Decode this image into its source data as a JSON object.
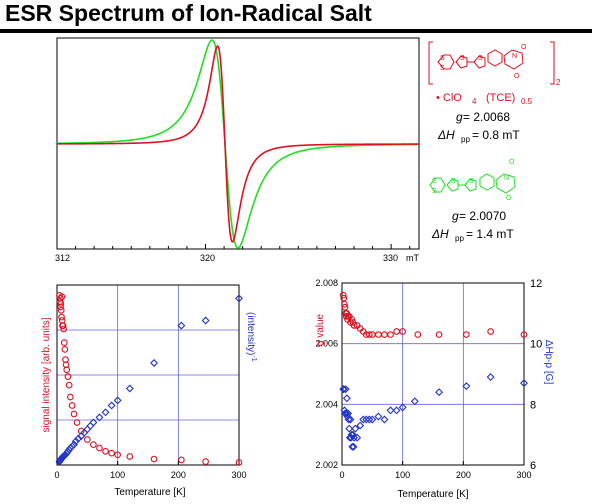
{
  "page": {
    "title": "ESR Spectrum of Ion-Radical Salt"
  },
  "colors": {
    "red": "#dd1122",
    "green": "#22dd22",
    "blue": "#2233cc",
    "grid": "#6666dd"
  },
  "legend": {
    "salt": {
      "counterion": "• ClO",
      "sub4": "4",
      "tce": "(TCE)",
      "sub05": "0.5",
      "sub2": "2",
      "g_label": "g",
      "g_value": " = 2.0068",
      "dh_label": "ΔH",
      "dh_sub": "pp",
      "dh_value": " = 0.8 mT"
    },
    "neutral": {
      "g_label": "g",
      "g_value": " = 2.0070",
      "dh_label": "ΔH",
      "dh_sub": "pp",
      "dh_value": " = 1.4 mT"
    }
  },
  "chart_data": [
    {
      "type": "line",
      "title": "ESR Spectrum of Ion-Radical Salt",
      "xlabel": "mT",
      "xlim": [
        312,
        331.5
      ],
      "xticks": [
        "312",
        "320",
        "330"
      ],
      "series": [
        {
          "color": "red",
          "center": 321.05,
          "dHpp": 0.8
        },
        {
          "color": "green",
          "center": 321.05,
          "dHpp": 1.4
        }
      ]
    },
    {
      "type": "scatter",
      "xlabel": "Temperature [K]",
      "ylabel": "signal intensity [arb. units]",
      "ylabel_right": "(intensity)",
      "ylabel_right_sup": "-1",
      "xlim": [
        0,
        300
      ],
      "xticks": [
        "0",
        "100",
        "200",
        "300"
      ],
      "series": [
        {
          "color": "red",
          "marker": "circle",
          "x": [
            4,
            5,
            5.5,
            6,
            6.5,
            7,
            7.5,
            8,
            8.5,
            9,
            10,
            11,
            12,
            13,
            14,
            15,
            16,
            18,
            20,
            22,
            25,
            28,
            33,
            40,
            50,
            60,
            70,
            80,
            90,
            100,
            120,
            160,
            205,
            245,
            300
          ],
          "y": [
            0.998,
            0.96,
            0.98,
            0.93,
            0.95,
            0.91,
            0.87,
            0.99,
            0.85,
            0.82,
            0.82,
            0.8,
            0.72,
            0.68,
            0.62,
            0.59,
            0.56,
            0.52,
            0.47,
            0.4,
            0.35,
            0.3,
            0.25,
            0.2,
            0.15,
            0.12,
            0.1,
            0.08,
            0.07,
            0.06,
            0.05,
            0.035,
            0.03,
            0.02,
            0.015
          ]
        },
        {
          "color": "blue",
          "marker": "diamond",
          "x": [
            4,
            5,
            6,
            7,
            8,
            9,
            10,
            12,
            14,
            16,
            18,
            20,
            22,
            25,
            28,
            31,
            35,
            40,
            45,
            50,
            55,
            60,
            70,
            80,
            90,
            100,
            120,
            160,
            205,
            245,
            300
          ],
          "y": [
            0.02,
            0.025,
            0.03,
            0.035,
            0.04,
            0.045,
            0.05,
            0.055,
            0.06,
            0.07,
            0.08,
            0.09,
            0.1,
            0.11,
            0.12,
            0.14,
            0.155,
            0.17,
            0.19,
            0.21,
            0.23,
            0.25,
            0.28,
            0.31,
            0.35,
            0.38,
            0.45,
            0.6,
            0.82,
            0.85,
            0.98
          ]
        }
      ]
    },
    {
      "type": "scatter",
      "xlabel": "Temperature [K]",
      "ylabel": "g value",
      "ylabel_right": "ΔHp-p [G]",
      "xlim": [
        0,
        300
      ],
      "xticks": [
        "0",
        "100",
        "200",
        "300"
      ],
      "ylim": [
        2.002,
        2.008
      ],
      "yticks": [
        "2.002",
        "2.004",
        "2.006",
        "2.008"
      ],
      "ylim_right": [
        6,
        12
      ],
      "yticks_right": [
        "6",
        "8",
        "10",
        "12"
      ],
      "series": [
        {
          "color": "red",
          "marker": "circle",
          "axis": "left",
          "x": [
            2,
            3,
            4,
            5,
            6,
            7,
            8,
            9,
            10,
            12,
            14,
            16,
            18,
            20,
            25,
            30,
            35,
            40,
            45,
            50,
            60,
            70,
            80,
            90,
            100,
            125,
            160,
            205,
            245,
            300
          ],
          "y": [
            2.0076,
            2.0075,
            2.0073,
            2.0072,
            2.007,
            2.0069,
            2.007,
            2.0068,
            2.0069,
            2.0069,
            2.0067,
            2.0068,
            2.0067,
            2.0066,
            2.0066,
            2.0065,
            2.0064,
            2.0063,
            2.0063,
            2.0063,
            2.0063,
            2.0063,
            2.0063,
            2.0064,
            2.0064,
            2.0063,
            2.0063,
            2.0063,
            2.0064,
            2.0063
          ]
        },
        {
          "color": "blue",
          "marker": "diamond",
          "axis": "right",
          "x": [
            2,
            3,
            4,
            5,
            6,
            7,
            8,
            9,
            10,
            11,
            12,
            13,
            14,
            15,
            16,
            17,
            18,
            19,
            20,
            22,
            25,
            30,
            35,
            40,
            45,
            50,
            60,
            70,
            80,
            90,
            100,
            120,
            160,
            205,
            245,
            300
          ],
          "y": [
            8.5,
            8.5,
            7.8,
            7.7,
            8.5,
            7.7,
            8.2,
            7.6,
            7.7,
            7.5,
            7.2,
            6.9,
            7.5,
            6.9,
            7.0,
            6.6,
            7.0,
            6.6,
            6.9,
            7.2,
            6.9,
            7.3,
            7.5,
            7.5,
            7.5,
            7.5,
            7.6,
            7.5,
            7.8,
            7.8,
            7.9,
            8.1,
            8.4,
            8.6,
            8.9,
            8.7
          ]
        }
      ]
    }
  ]
}
